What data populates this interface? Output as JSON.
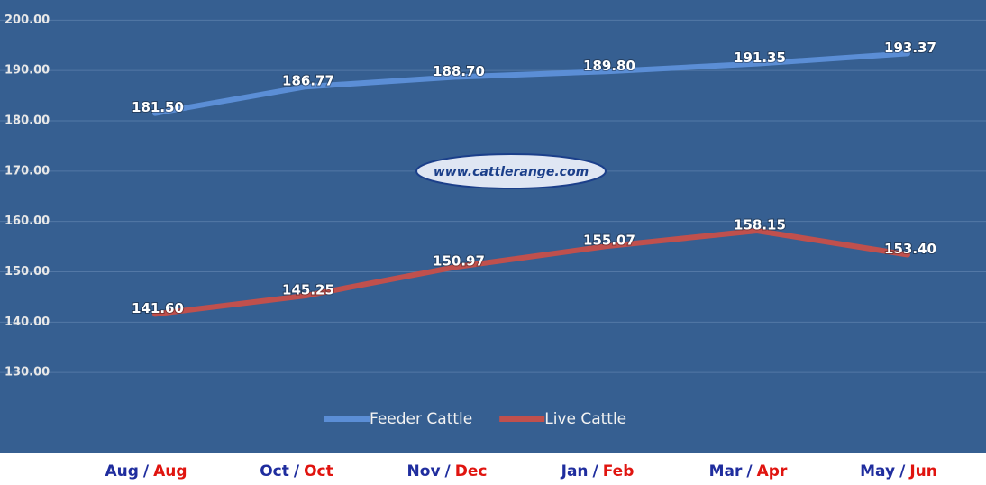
{
  "chart_data": {
    "type": "line",
    "categories": [
      [
        "Aug",
        "Aug"
      ],
      [
        "Oct",
        "Oct"
      ],
      [
        "Nov",
        "Dec"
      ],
      [
        "Jan",
        "Feb"
      ],
      [
        "Mar",
        "Apr"
      ],
      [
        "May",
        "Jun"
      ]
    ],
    "category_separator": "/",
    "series": [
      {
        "name": "Feeder Cattle",
        "color": "#5b8ed6",
        "values": [
          181.5,
          186.77,
          188.7,
          189.8,
          191.35,
          193.37
        ],
        "value_labels": [
          "181.50",
          "186.77",
          "188.70",
          "189.80",
          "191.35",
          "193.37"
        ],
        "category_color": "#1f2d9e"
      },
      {
        "name": "Live Cattle",
        "color": "#c0504d",
        "values": [
          141.6,
          145.25,
          150.97,
          155.07,
          158.15,
          153.4
        ],
        "value_labels": [
          "141.60",
          "145.25",
          "150.97",
          "155.07",
          "158.15",
          "153.40"
        ],
        "category_color": "#e0140f"
      }
    ],
    "ylim": [
      120,
      204
    ],
    "yticks": [
      {
        "value": 130,
        "label": "130.00"
      },
      {
        "value": 140,
        "label": "140.00"
      },
      {
        "value": 150,
        "label": "150.00"
      },
      {
        "value": 160,
        "label": "160.00"
      },
      {
        "value": 170,
        "label": "170.00"
      },
      {
        "value": 180,
        "label": "180.00"
      },
      {
        "value": 190,
        "label": "190.00"
      },
      {
        "value": 200,
        "label": "200.00"
      }
    ],
    "grid": true,
    "legend": "bottom",
    "watermark": "www.cattlerange.com"
  }
}
